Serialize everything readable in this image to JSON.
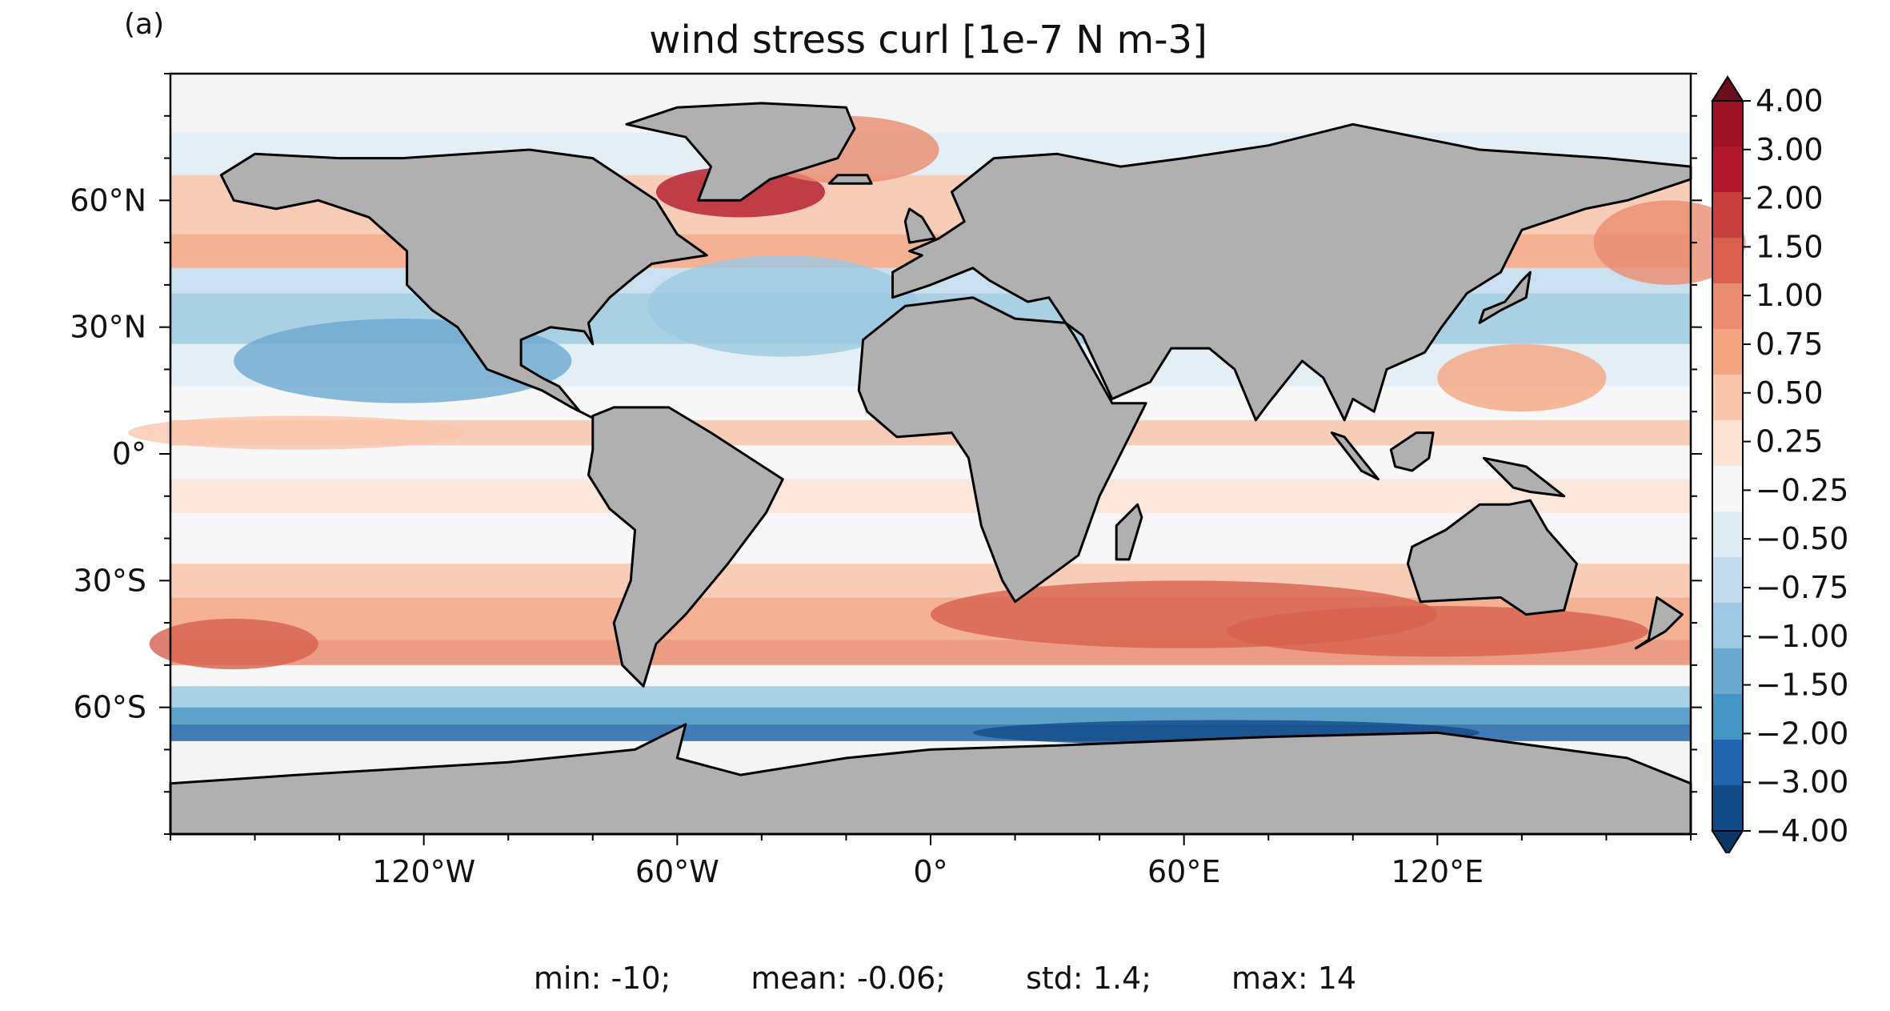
{
  "panel_label": "(a)",
  "chart_data": {
    "type": "heatmap",
    "title": "wind stress curl [1e-7 N m-3]",
    "xlabel": "",
    "ylabel": "",
    "x_ticks": [
      "120°W",
      "60°W",
      "0°",
      "60°E",
      "120°E"
    ],
    "x_tick_values": [
      -120,
      -60,
      0,
      60,
      120
    ],
    "y_ticks": [
      "60°N",
      "30°N",
      "0°",
      "30°S",
      "60°S"
    ],
    "y_tick_values": [
      60,
      30,
      0,
      -30,
      -60
    ],
    "xlim": [
      -180,
      180
    ],
    "ylim": [
      -90,
      90
    ],
    "colorbar": {
      "labels": [
        "4.00",
        "3.00",
        "2.00",
        "1.50",
        "1.00",
        "0.75",
        "0.50",
        "0.25",
        "−0.25",
        "−0.50",
        "−0.75",
        "−1.00",
        "−1.50",
        "−2.00",
        "−3.00",
        "−4.00"
      ],
      "levels": [
        4,
        3,
        2,
        1.5,
        1,
        0.75,
        0.5,
        0.25,
        -0.25,
        -0.5,
        -0.75,
        -1,
        -1.5,
        -2,
        -3,
        -4
      ],
      "colors_top_to_bottom": [
        "#9e1326",
        "#b2182b",
        "#c5403f",
        "#d6604d",
        "#e98c70",
        "#f4a582",
        "#f8c5ab",
        "#fbe3d6",
        "#f7f7f7",
        "#dfecf4",
        "#c3dcec",
        "#9cc9e1",
        "#6ba8d0",
        "#4393c3",
        "#2166ac",
        "#114b88"
      ],
      "extend_max_color": "#6a0f1f",
      "extend_min_color": "#0b3768"
    },
    "stats": {
      "min": "min: -10;",
      "mean": "mean: -0.06;",
      "std": "std: 1.4;",
      "max": "max: 14"
    }
  }
}
